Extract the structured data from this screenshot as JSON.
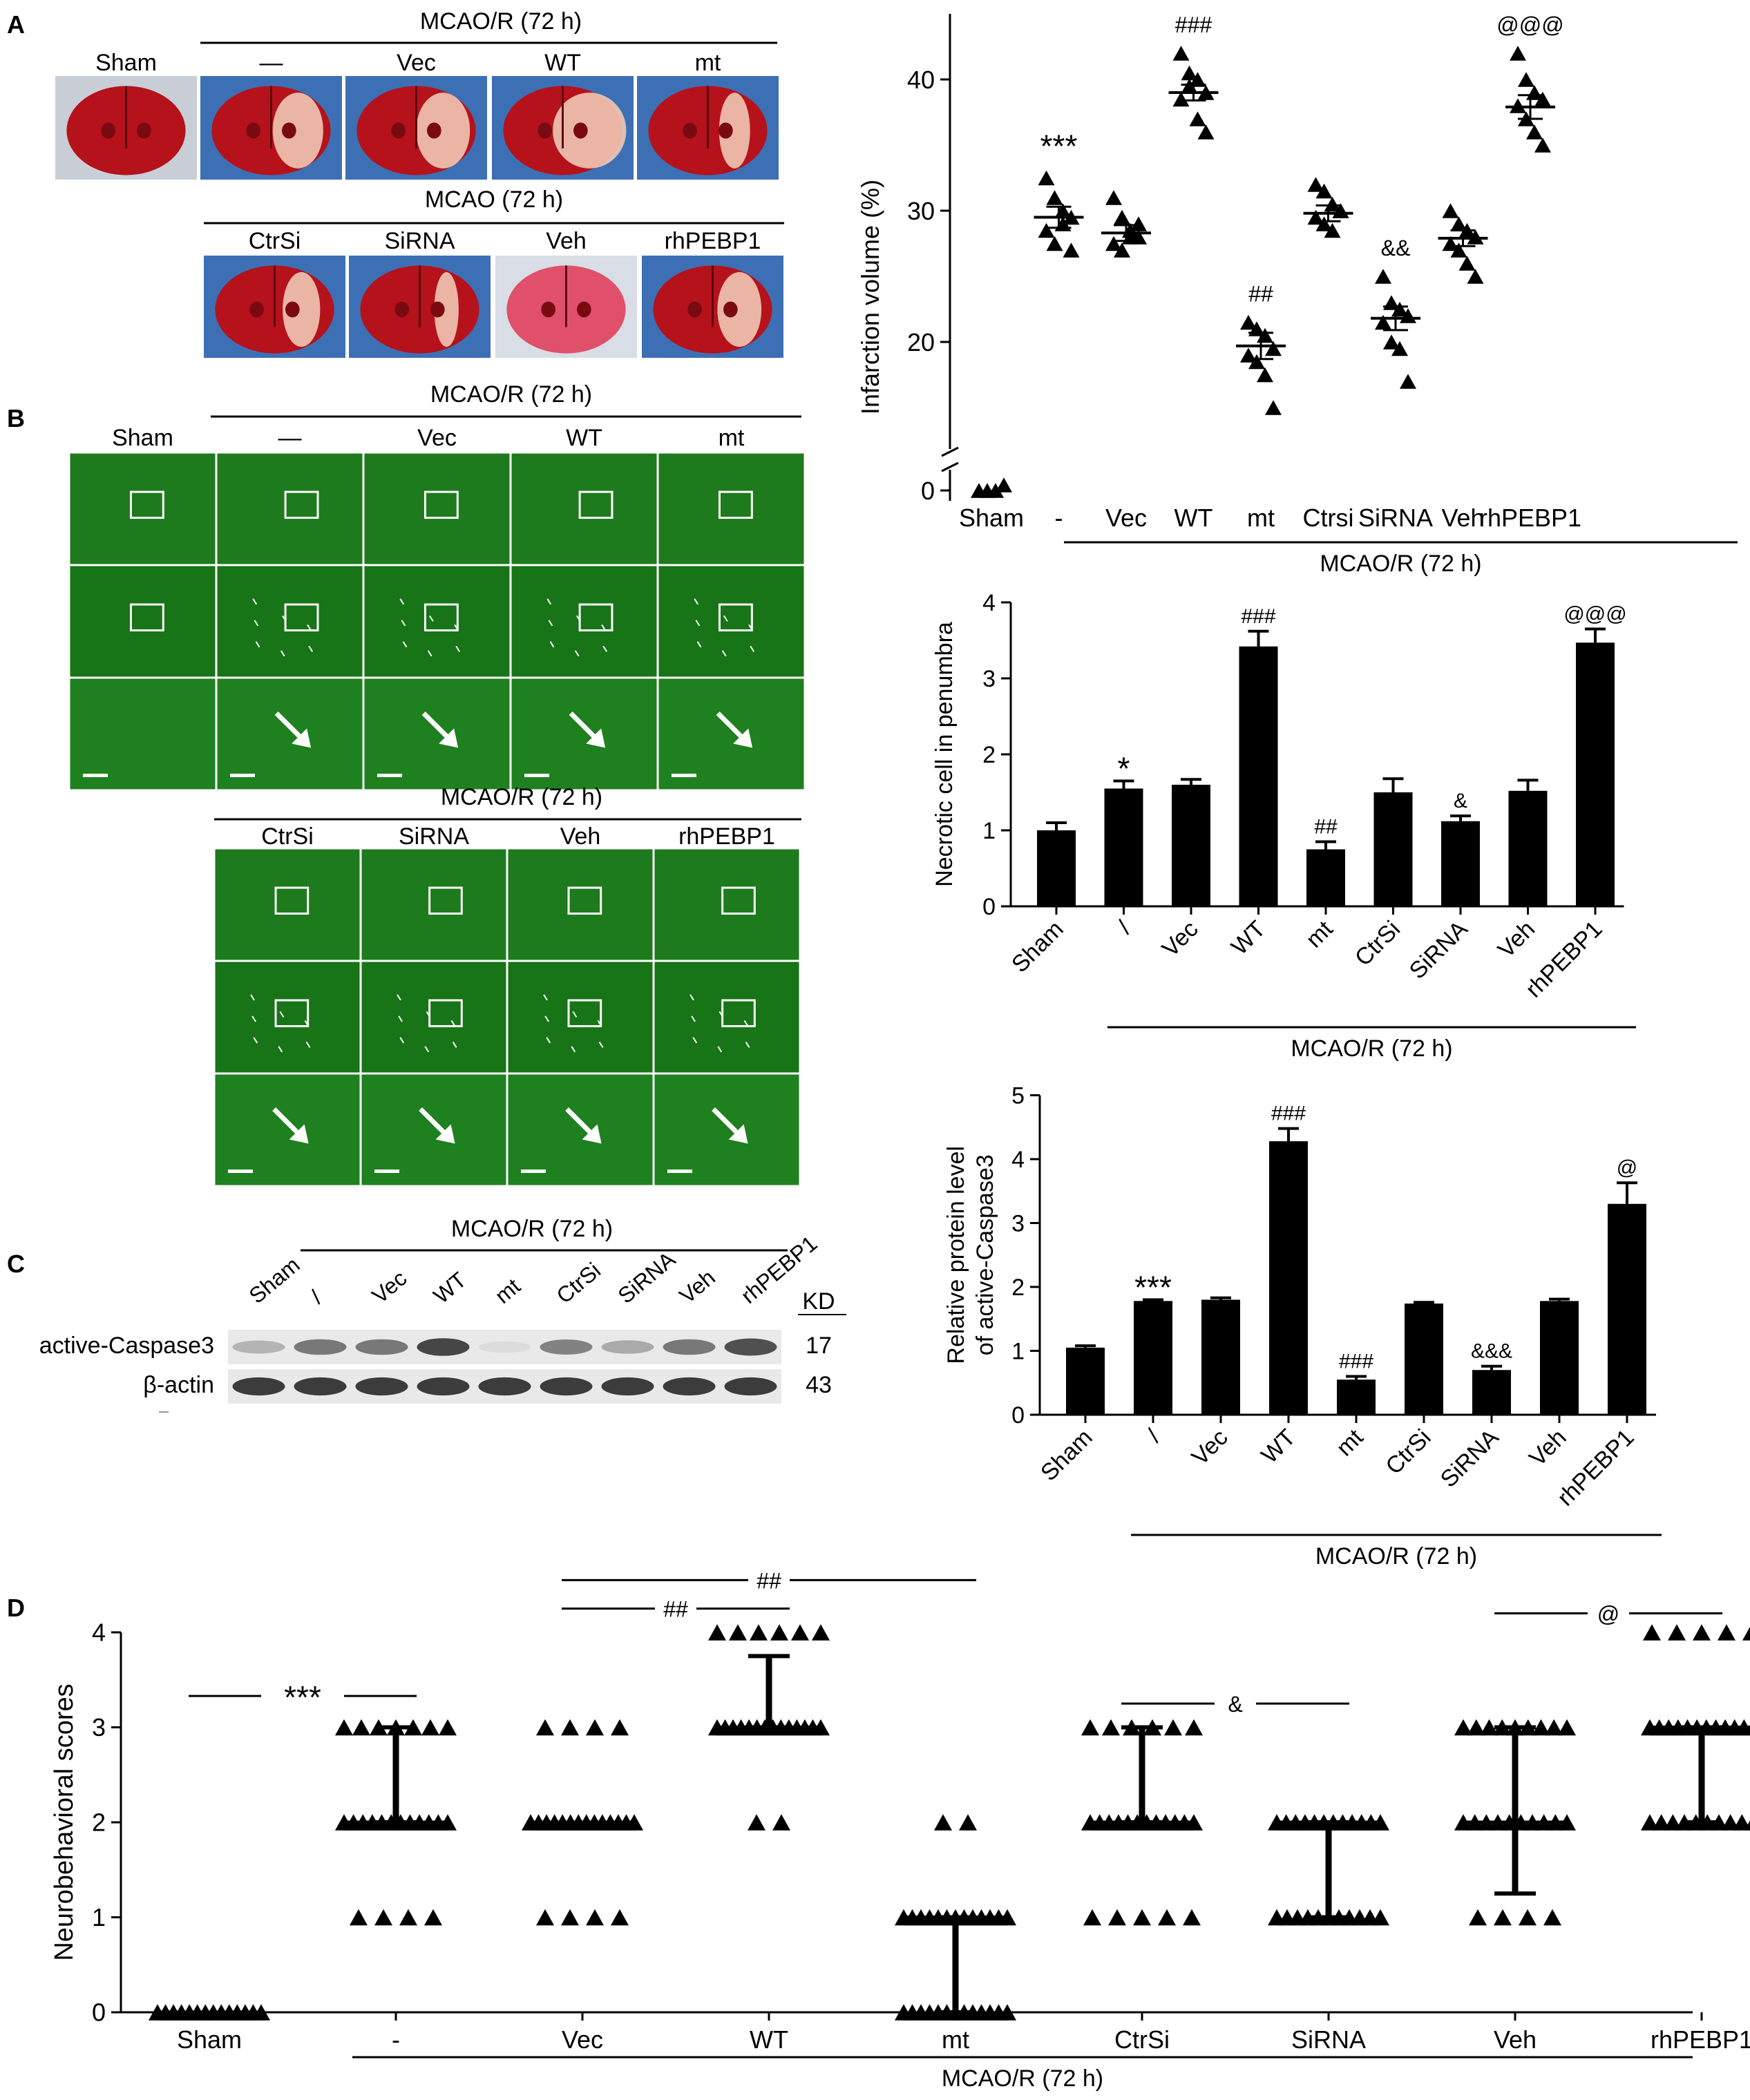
{
  "panel_labels": [
    "A",
    "B",
    "C",
    "D"
  ],
  "colors": {
    "bg": "#ffffff",
    "ink": "#000000",
    "fluor": "#1f8a1f",
    "fluor_dark": "#0f5a0f",
    "tissue": "#b5121b",
    "tissue_pale": "#f0c8b4",
    "mat": "#3d6fb5"
  },
  "panelA": {
    "top_bracket": "MCAO/R (72 h)",
    "top_labels": [
      "Sham",
      "—",
      "Vec",
      "WT",
      "mt"
    ],
    "bottom_bracket": "MCAO (72 h)",
    "bottom_labels": [
      "CtrSi",
      "SiRNA",
      "Veh",
      "rhPEBP1"
    ]
  },
  "panelB": {
    "top_bracket": "MCAO/R (72 h)",
    "top_labels": [
      "Sham",
      "—",
      "Vec",
      "WT",
      "mt"
    ],
    "bottom_bracket": "MCAO/R (72 h)",
    "bottom_labels": [
      "CtrSi",
      "SiRNA",
      "Veh",
      "rhPEBP1"
    ]
  },
  "panelC": {
    "bracket": "MCAO/R (72 h)",
    "lanes": [
      "Sham",
      "/",
      "Vec",
      "WT",
      "mt",
      "CtrSi",
      "SiRNA",
      "Veh",
      "rhPEBP1"
    ],
    "kd_header": "KD",
    "rows": [
      {
        "name": "active-Caspase3",
        "kd": "17",
        "intensity": [
          0.25,
          0.55,
          0.55,
          0.8,
          0.05,
          0.5,
          0.3,
          0.55,
          0.75
        ]
      },
      {
        "name": "β-actin",
        "kd": "43",
        "intensity": [
          0.85,
          0.85,
          0.85,
          0.85,
          0.85,
          0.85,
          0.85,
          0.85,
          0.85
        ]
      }
    ]
  },
  "chart_data": [
    {
      "id": "infarct",
      "type": "scatter",
      "ylabel": "Infarction volume (%)",
      "categories": [
        "Sham",
        "-",
        "Vec",
        "WT",
        "mt",
        "Ctrsi",
        "SiRNA",
        "Veh",
        "rhPEBP1"
      ],
      "yticks": [
        "0",
        "20",
        "30",
        "40"
      ],
      "ylim": [
        0,
        45
      ],
      "axis_break": true,
      "bracket": "MCAO/R (72 h)",
      "series": [
        {
          "name": "Sham",
          "mean": 0,
          "sem": 0,
          "points": [
            0,
            0,
            0,
            0.4
          ]
        },
        {
          "name": "-",
          "mean": 29.5,
          "sem": 0.8,
          "points": [
            32.5,
            31,
            30,
            29.5,
            28.5,
            27.5,
            29,
            27
          ]
        },
        {
          "name": "Vec",
          "mean": 28.3,
          "sem": 0.6,
          "points": [
            31,
            29.5,
            28.5,
            28,
            27.5,
            27,
            28,
            29
          ]
        },
        {
          "name": "WT",
          "mean": 39,
          "sem": 0.6,
          "points": [
            42,
            40.5,
            40,
            39,
            38.5,
            39.5,
            37,
            36
          ]
        },
        {
          "name": "mt",
          "mean": 19.7,
          "sem": 1,
          "points": [
            21.5,
            21,
            20.5,
            19.5,
            19,
            18.5,
            17.5,
            15
          ]
        },
        {
          "name": "Ctrsi",
          "mean": 29.8,
          "sem": 0.6,
          "points": [
            32,
            31.5,
            30.5,
            30,
            29.5,
            29,
            28.5,
            30
          ]
        },
        {
          "name": "SiRNA",
          "mean": 21.8,
          "sem": 0.9,
          "points": [
            25,
            23,
            22.5,
            22,
            21.5,
            20,
            19.5,
            17
          ]
        },
        {
          "name": "Veh",
          "mean": 27.9,
          "sem": 0.6,
          "points": [
            30,
            29,
            28.5,
            28,
            27.5,
            27,
            26,
            25
          ]
        },
        {
          "name": "rhPEBP1",
          "mean": 37.9,
          "sem": 0.9,
          "points": [
            42,
            40,
            39,
            38.5,
            38,
            37,
            36,
            35
          ]
        }
      ],
      "annotations": [
        "",
        "***",
        "",
        "###",
        "##",
        "",
        "&&",
        "",
        "@@@"
      ]
    },
    {
      "id": "necrotic",
      "type": "bar",
      "ylabel": "Necrotic cell in penumbra",
      "categories": [
        "Sham",
        "/",
        "Vec",
        "WT",
        "mt",
        "CtrSi",
        "SiRNA",
        "Veh",
        "rhPEBP1"
      ],
      "yticks": [
        "0",
        "1",
        "2",
        "3",
        "4"
      ],
      "ylim": [
        0,
        4
      ],
      "bracket": "MCAO/R (72 h)",
      "values": [
        1.0,
        1.55,
        1.6,
        3.42,
        0.75,
        1.5,
        1.12,
        1.52,
        3.47
      ],
      "errors": [
        0.1,
        0.1,
        0.07,
        0.2,
        0.1,
        0.18,
        0.07,
        0.14,
        0.18
      ],
      "annotations": [
        "",
        "*",
        "",
        "###",
        "##",
        "",
        "&",
        "",
        "@@@"
      ]
    },
    {
      "id": "caspase",
      "type": "bar",
      "ylabel_lines": [
        "Relative protein level",
        "of active-Caspase3"
      ],
      "categories": [
        "Sham",
        "/",
        "Vec",
        "WT",
        "mt",
        "CtrSi",
        "SiRNA",
        "Veh",
        "rhPEBP1"
      ],
      "yticks": [
        "0",
        "1",
        "2",
        "3",
        "4",
        "5"
      ],
      "ylim": [
        0,
        5
      ],
      "bracket": "MCAO/R (72 h)",
      "values": [
        1.05,
        1.78,
        1.8,
        4.28,
        0.55,
        1.74,
        0.7,
        1.78,
        3.3
      ],
      "errors": [
        0.03,
        0.02,
        0.03,
        0.2,
        0.05,
        0.02,
        0.06,
        0.03,
        0.33
      ],
      "annotations": [
        "",
        "***",
        "",
        "###",
        "###",
        "",
        "&&&",
        "",
        "@"
      ]
    },
    {
      "id": "neuro",
      "type": "scatter",
      "ylabel": "Neurobehavioral scores",
      "categories": [
        "Sham",
        "-",
        "Vec",
        "WT",
        "mt",
        "CtrSi",
        "SiRNA",
        "Veh",
        "rhPEBP1"
      ],
      "yticks": [
        "0",
        "1",
        "2",
        "3",
        "4"
      ],
      "ylim": [
        0,
        4
      ],
      "bracket": "MCAO/R (72 h)",
      "series": [
        {
          "name": "Sham",
          "median": 0,
          "q1": 0,
          "q3": 0,
          "counts": {
            "0": 14
          }
        },
        {
          "name": "-",
          "median": 2,
          "q1": 2,
          "q3": 3,
          "counts": {
            "1": 4,
            "2": 12,
            "3": 7
          }
        },
        {
          "name": "Vec",
          "median": 2,
          "q1": 2,
          "q3": 2,
          "counts": {
            "1": 4,
            "2": 14,
            "3": 4
          }
        },
        {
          "name": "WT",
          "median": 3,
          "q1": 3,
          "q3": 3.75,
          "counts": {
            "2": 2,
            "3": 14,
            "4": 6
          }
        },
        {
          "name": "mt",
          "median": 1,
          "q1": 0,
          "q3": 1,
          "counts": {
            "0": 13,
            "1": 13,
            "2": 2
          }
        },
        {
          "name": "CtrSi",
          "median": 2,
          "q1": 2,
          "q3": 3,
          "counts": {
            "1": 5,
            "2": 12,
            "3": 6
          }
        },
        {
          "name": "SiRNA",
          "median": 2,
          "q1": 1,
          "q3": 2,
          "counts": {
            "1": 11,
            "2": 12
          }
        },
        {
          "name": "Veh",
          "median": 2,
          "q1": 1.25,
          "q3": 3,
          "counts": {
            "1": 4,
            "2": 10,
            "3": 9
          }
        },
        {
          "name": "rhPEBP1",
          "median": 3,
          "q1": 2,
          "q3": 3,
          "counts": {
            "2": 10,
            "3": 12,
            "4": 5
          }
        }
      ],
      "comparisons": [
        {
          "label": "***",
          "from": 0,
          "to": 1,
          "level": 3.33
        },
        {
          "label": "##",
          "from": 2,
          "to": 3,
          "level": 4.25
        },
        {
          "label": "##",
          "from": 2,
          "to": 4,
          "level": 4.55
        },
        {
          "label": "&",
          "from": 5,
          "to": 6,
          "level": 3.25
        },
        {
          "label": "@",
          "from": 7,
          "to": 8,
          "level": 4.2
        }
      ]
    }
  ]
}
